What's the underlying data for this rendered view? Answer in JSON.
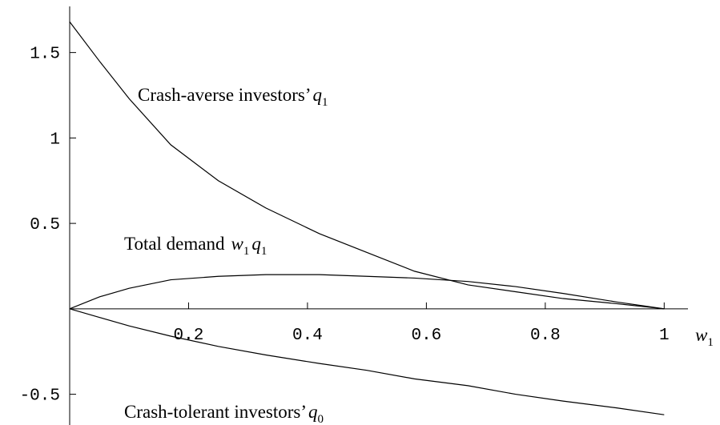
{
  "chart_data": {
    "type": "line",
    "x": [
      0,
      0.05,
      0.1,
      0.17,
      0.25,
      0.33,
      0.42,
      0.5,
      0.58,
      0.67,
      0.75,
      0.83,
      0.92,
      1
    ],
    "series": [
      {
        "name": "Crash-averse investors’",
        "var": "q",
        "sub": "1",
        "color": "#000000",
        "values": [
          1.68,
          1.45,
          1.23,
          0.96,
          0.75,
          0.59,
          0.44,
          0.33,
          0.22,
          0.14,
          0.1,
          0.06,
          0.03,
          0
        ]
      },
      {
        "name": "Total demand",
        "var": "w",
        "sub": "1",
        "var2": "q",
        "sub2": "1",
        "color": "#000000",
        "values": [
          0,
          0.07,
          0.12,
          0.17,
          0.19,
          0.2,
          0.2,
          0.19,
          0.18,
          0.16,
          0.13,
          0.09,
          0.04,
          0
        ]
      },
      {
        "name": "Crash-tolerant investors’",
        "var": "q",
        "sub": "0",
        "color": "#000000",
        "values": [
          0,
          -0.05,
          -0.1,
          -0.16,
          -0.22,
          -0.27,
          -0.32,
          -0.36,
          -0.41,
          -0.45,
          -0.5,
          -0.54,
          -0.58,
          -0.62
        ]
      }
    ],
    "x_label": {
      "var": "w",
      "sub": "1"
    },
    "xlim": [
      0,
      1.04
    ],
    "ylim": [
      -0.68,
      1.77
    ],
    "xticks": [
      0.2,
      0.4,
      0.6,
      0.8,
      1
    ],
    "yticks": [
      -0.5,
      0.5,
      1,
      1.5
    ]
  }
}
